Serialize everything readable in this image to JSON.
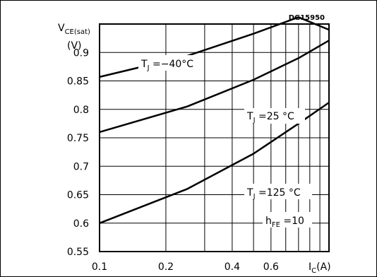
{
  "chart_data": {
    "type": "line",
    "code": "DG15950",
    "ylabel": {
      "main": "V",
      "sub": "CE(sat)",
      "unit": "(V)"
    },
    "xlabel": {
      "main": "I",
      "sub": "C",
      "unit": "(A)"
    },
    "x_scale": "log",
    "xlim": [
      0.1,
      1.1
    ],
    "ylim": [
      0.55,
      0.95
    ],
    "grid": true,
    "x_ticks": [
      0.1,
      0.2,
      0.4,
      0.6
    ],
    "x_tick_labels": [
      "0.1",
      "0.2",
      "0.4",
      "0.6"
    ],
    "y_ticks": [
      0.55,
      0.6,
      0.65,
      0.7,
      0.75,
      0.8,
      0.85,
      0.9
    ],
    "y_tick_labels": [
      "0.55",
      "0.6",
      "0.65",
      "0.7",
      "0.75",
      "0.8",
      "0.85",
      "0.9"
    ],
    "condition": "h_FE = 10",
    "series": [
      {
        "name": "TJ = -40 °C",
        "x": [
          0.1,
          0.25,
          0.5,
          0.8,
          1.1
        ],
        "y": [
          0.857,
          0.894,
          0.933,
          0.962,
          0.94
        ]
      },
      {
        "name": "TJ = 25 °C",
        "x": [
          0.1,
          0.25,
          0.5,
          0.8,
          1.1
        ],
        "y": [
          0.76,
          0.805,
          0.852,
          0.89,
          0.921
        ]
      },
      {
        "name": "TJ = 125 °C",
        "x": [
          0.1,
          0.25,
          0.5,
          0.8,
          1.1
        ],
        "y": [
          0.6,
          0.66,
          0.722,
          0.775,
          0.812
        ]
      }
    ],
    "annotations": [
      {
        "main": "T",
        "sub": "J",
        "value": " =−40",
        "unit": "°C"
      },
      {
        "main": "T",
        "sub": "J",
        "value": " =25 ",
        "unit": "°C"
      },
      {
        "main": "T",
        "sub": "J",
        "value": " =125 ",
        "unit": "°C"
      },
      {
        "main": "h",
        "sub": "FE",
        "value": " =10",
        "unit": ""
      }
    ]
  }
}
